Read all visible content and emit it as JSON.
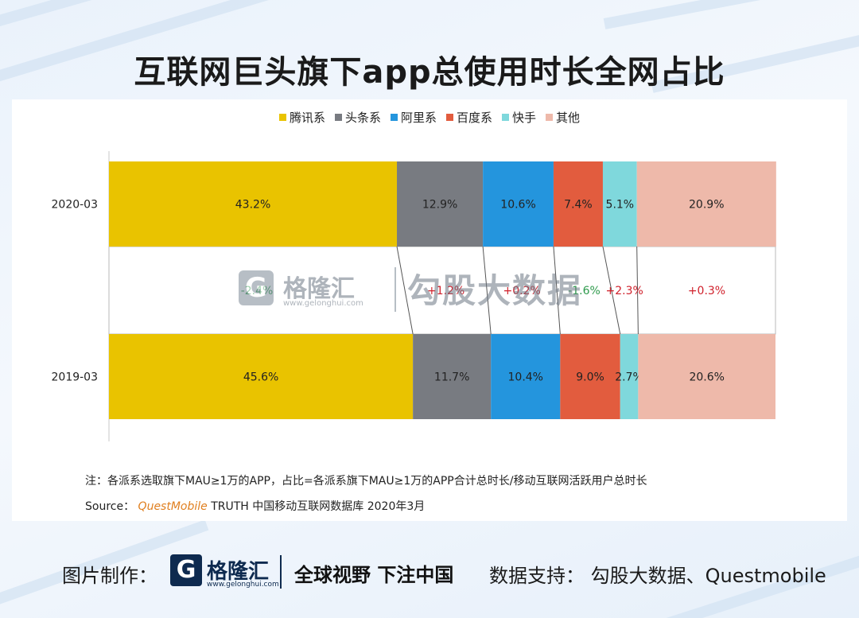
{
  "title": "互联网巨头旗下app总使用时长全网占比",
  "watermark": {
    "logo_letter": "G",
    "name": "格隆汇",
    "url": "www.gelonghui.com",
    "brand": "勾股大数据"
  },
  "chart_data": {
    "type": "bar",
    "orientation": "horizontal",
    "stacked": true,
    "percent_stacked": true,
    "categories": [
      "2020-03",
      "2019-03"
    ],
    "series": [
      {
        "name": "腾讯系",
        "values": [
          43.2,
          45.6
        ],
        "labels": [
          "43.2%",
          "45.6%"
        ],
        "change": "-2.4%",
        "change_color": "#2e9a4c",
        "color": "#e9c300"
      },
      {
        "name": "头条系",
        "values": [
          12.9,
          11.7
        ],
        "labels": [
          "12.9%",
          "11.7%"
        ],
        "change": "+1.2%",
        "change_color": "#d0202b",
        "color": "#787b81"
      },
      {
        "name": "阿里系",
        "values": [
          10.6,
          10.4
        ],
        "labels": [
          "10.6%",
          "10.4%"
        ],
        "change": "+0.2%",
        "change_color": "#d0202b",
        "color": "#2495dd"
      },
      {
        "name": "百度系",
        "values": [
          7.4,
          9.0
        ],
        "labels": [
          "7.4%",
          "9.0%"
        ],
        "change": "-1.6%",
        "change_color": "#2e9a4c",
        "color": "#e25c3e"
      },
      {
        "name": "快手",
        "values": [
          5.1,
          2.7
        ],
        "labels": [
          "5.1%",
          "2.7%"
        ],
        "change": "+2.3%",
        "change_color": "#d0202b",
        "color": "#7fd8dc"
      },
      {
        "name": "其他",
        "values": [
          20.9,
          20.6
        ],
        "labels": [
          "20.9%",
          "20.6%"
        ],
        "change": "+0.3%",
        "change_color": "#d0202b",
        "color": "#eeb9aa"
      }
    ],
    "xlim": [
      0,
      100
    ],
    "legend_position": "top-center",
    "grid": false
  },
  "note": "注：各派系选取旗下MAU≥1万的APP，占比=各派系旗下MAU≥1万的APP合计总时长/移动互联网活跃用户总时长",
  "source": {
    "label": "Source：",
    "brand": "QuestMobile",
    "text": "TRUTH 中国移动互联网数据库 2020年3月"
  },
  "footer": {
    "made_by_label": "图片制作：",
    "logo_letter": "G",
    "brand": "格隆汇",
    "url": "www.gelonghui.com",
    "slogan": "全球视野 下注中国",
    "support": "数据支持： 勾股大数据、Questmobile"
  }
}
